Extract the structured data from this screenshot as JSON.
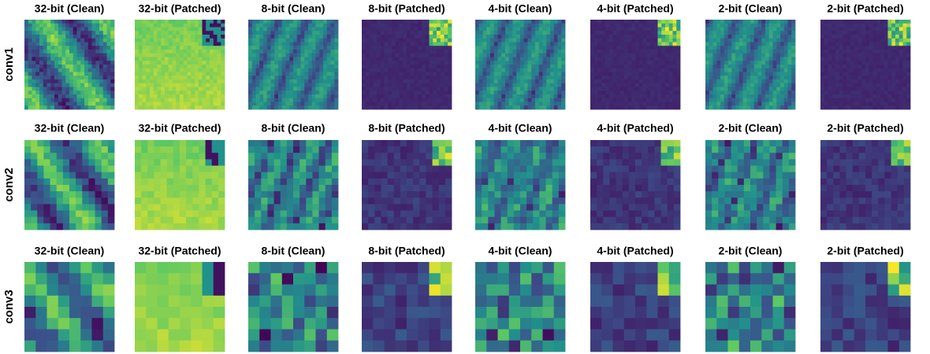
{
  "figure": {
    "rows": [
      {
        "label": "conv1",
        "panels": [
          "32-bit (Clean)",
          "32-bit (Patched)",
          "8-bit (Clean)",
          "8-bit (Patched)",
          "4-bit (Clean)",
          "4-bit (Patched)",
          "2-bit (Clean)",
          "2-bit (Patched)"
        ]
      },
      {
        "label": "conv2",
        "panels": [
          "32-bit (Clean)",
          "32-bit (Patched)",
          "8-bit (Clean)",
          "8-bit (Patched)",
          "4-bit (Clean)",
          "4-bit (Patched)",
          "2-bit (Clean)",
          "2-bit (Patched)"
        ]
      },
      {
        "label": "conv3",
        "panels": [
          "32-bit (Clean)",
          "32-bit (Patched)",
          "8-bit (Clean)",
          "8-bit (Patched)",
          "4-bit (Clean)",
          "4-bit (Patched)",
          "2-bit (Clean)",
          "2-bit (Patched)"
        ]
      }
    ]
  }
}
